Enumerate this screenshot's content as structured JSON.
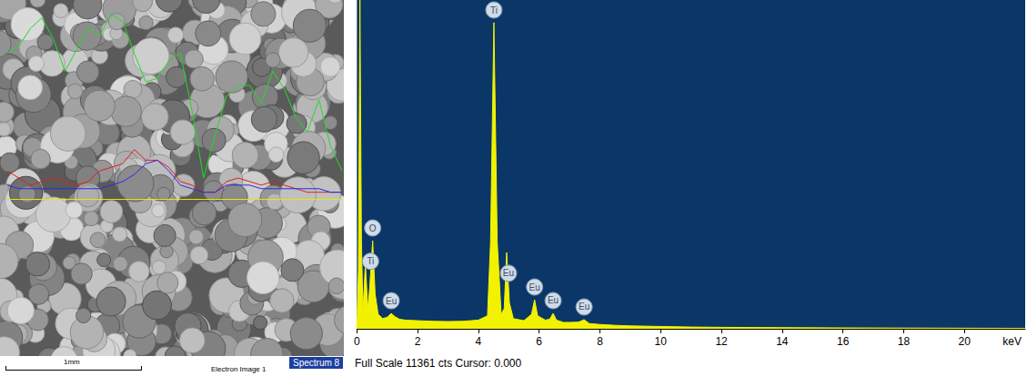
{
  "sem_image": {
    "scale_bar": "1mm",
    "caption": "Electron Image 1",
    "spectrum_label": "Spectrum 8",
    "ylim": [
      0,
      100
    ],
    "line_scans": [
      {
        "color": "#22dd22",
        "values": [
          85,
          87,
          92,
          95,
          89,
          80,
          86,
          92,
          90,
          96,
          94,
          85,
          77,
          78,
          83,
          85,
          69,
          50,
          62,
          73,
          76,
          76,
          71,
          80,
          75,
          67,
          63,
          72,
          59,
          52
        ]
      },
      {
        "color": "#e02020",
        "values": [
          52,
          50,
          48,
          49,
          50,
          49,
          48,
          49,
          52,
          53,
          54,
          58,
          55,
          55,
          53,
          49,
          48,
          46,
          46,
          49,
          50,
          49,
          48,
          49,
          48,
          47,
          46,
          46,
          46,
          46
        ]
      },
      {
        "color": "#2a2ae8",
        "values": [
          48,
          47,
          47,
          47,
          47,
          47,
          47,
          47,
          47,
          48,
          49,
          51,
          54,
          55,
          52,
          48,
          47,
          46,
          46,
          48,
          48,
          48,
          47,
          47,
          47,
          47,
          47,
          47,
          46,
          46
        ]
      },
      {
        "color": "#e8e800",
        "values": [
          44,
          44,
          44,
          44,
          44,
          44,
          44,
          44,
          44,
          44,
          44,
          44,
          44,
          44,
          44,
          44,
          44,
          44,
          44,
          44,
          44,
          44,
          44,
          44,
          44,
          44,
          44,
          44,
          44,
          44
        ]
      }
    ]
  },
  "chart_data": {
    "type": "area",
    "xlabel": "keV",
    "footer": "Full Scale 11361 cts Cursor: 0.000",
    "color": "#f2f200",
    "grid": false,
    "tick_labels": "x",
    "xlim": [
      0,
      22
    ],
    "ylim": [
      0,
      11361
    ],
    "xticks": [
      0,
      2,
      4,
      6,
      8,
      10,
      12,
      14,
      16,
      18,
      20
    ],
    "x": [
      0,
      0.05,
      0.1,
      0.15,
      0.2,
      0.28,
      0.36,
      0.42,
      0.52,
      0.6,
      0.7,
      0.85,
      1.0,
      1.13,
      1.25,
      1.4,
      1.6,
      2.0,
      2.5,
      3.0,
      3.5,
      4.0,
      4.3,
      4.4,
      4.51,
      4.62,
      4.75,
      4.85,
      4.93,
      5.02,
      5.15,
      5.5,
      5.75,
      5.85,
      5.95,
      6.2,
      6.35,
      6.46,
      6.57,
      6.8,
      7.0,
      7.3,
      7.48,
      7.65,
      8.0,
      8.5,
      9.0,
      10,
      11,
      12,
      14,
      16,
      18,
      20,
      22
    ],
    "values": [
      0,
      2000,
      11361,
      3000,
      600,
      2260,
      700,
      1400,
      3044,
      1200,
      500,
      350,
      400,
      530,
      420,
      330,
      300,
      280,
      260,
      250,
      260,
      300,
      450,
      3000,
      10580,
      3000,
      500,
      700,
      2636,
      900,
      350,
      280,
      500,
      1004,
      450,
      300,
      330,
      534,
      300,
      220,
      220,
      230,
      314,
      180,
      150,
      120,
      100,
      80,
      60,
      50,
      40,
      30,
      25,
      20,
      15
    ],
    "annotations": [
      {
        "text": "Ti",
        "x": 0.45
      },
      {
        "text": "O",
        "x": 0.52
      },
      {
        "text": "Eu",
        "x": 1.13
      },
      {
        "text": "Ti",
        "x": 4.51
      },
      {
        "text": "Eu",
        "x": 4.99
      },
      {
        "text": "Eu",
        "x": 5.85
      },
      {
        "text": "Eu",
        "x": 6.46
      },
      {
        "text": "Eu",
        "x": 7.48
      }
    ]
  }
}
